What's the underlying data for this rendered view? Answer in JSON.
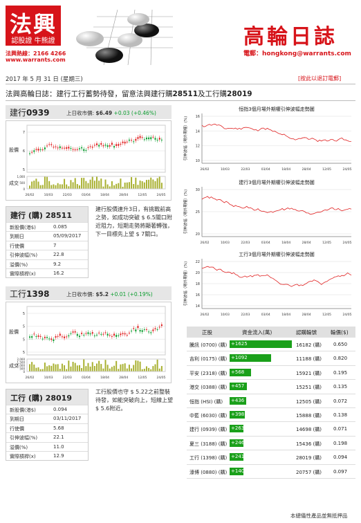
{
  "header": {
    "logo_main": "法興",
    "logo_sub": "認股證 牛熊證",
    "hotline": "法興熱線：2166 4266",
    "website": "www.warrants.com",
    "brand_title": "高輪日誌",
    "email": "電郵：hongkong@warrants.com",
    "date": "2017 年 5 月 31 日 (星期三)",
    "unsubscribe": "[按此以退訂電郵]"
  },
  "headline": {
    "prefix": "法興高輪日誌：建行工行蓄勢待發，留意法興建行購",
    "code1": "28511",
    "mid": "及工行購",
    "code2": "28019"
  },
  "stocks": [
    {
      "name": "建行",
      "code": "0939",
      "close_label": "上日收市價:",
      "close": "$6.49",
      "change": "+0.03 (+0.46%)",
      "y_label": "股價",
      "vol_label": "成交",
      "y_ticks": [
        "7",
        "6",
        "5"
      ],
      "vol_ticks": [
        "1,000",
        "500",
        "0"
      ],
      "x_ticks": [
        "26/02",
        "10/03",
        "22/03",
        "03/04",
        "18/04",
        "28/04",
        "12/05",
        "24/05"
      ],
      "warrant": {
        "title": "建行 (購) 28511",
        "rows": [
          {
            "k": "新股價(港$)",
            "v": "0.085"
          },
          {
            "k": "到期日",
            "v": "05/09/2017"
          },
          {
            "k": "行使價",
            "v": "7"
          },
          {
            "k": "引伸波幅(%)",
            "v": "22.8"
          },
          {
            "k": "溢價(%)",
            "v": "9.2"
          },
          {
            "k": "實際槓桿(x)",
            "v": "16.2"
          }
        ]
      },
      "comment": "建行股價連升3日，有挑戰前高之勢，如成功突破 $ 6.5關口附近阻力，短期走勢將顯著轉強，下一目標先上望 $ 7關口。"
    },
    {
      "name": "工行",
      "code": "1398",
      "close_label": "上日收市價:",
      "close": "$5.2",
      "change": "+0.01 (+0.19%)",
      "y_label": "股價",
      "vol_label": "成交",
      "y_ticks": [
        "5",
        "5",
        "5",
        "5"
      ],
      "vol_ticks": [
        "2,000",
        "1,500",
        "1,000",
        "500",
        "0"
      ],
      "x_ticks": [
        "26/02",
        "10/03",
        "22/03",
        "03/04",
        "18/04",
        "28/04",
        "12/05",
        "24/05"
      ],
      "warrant": {
        "title": "工行 (購) 28019",
        "rows": [
          {
            "k": "新股價(港$)",
            "v": "0.094"
          },
          {
            "k": "到期日",
            "v": "03/11/2017"
          },
          {
            "k": "行使價",
            "v": "5.68"
          },
          {
            "k": "引伸波幅(%)",
            "v": "22.1"
          },
          {
            "k": "溢價(%)",
            "v": "11.0"
          },
          {
            "k": "實際槓桿(x)",
            "v": "12.9"
          }
        ]
      },
      "comment": "工行股價也守 $ 5.22之前整裝待發，如能突破向上，短線上望 $ 5.6附近。"
    }
  ],
  "iv_charts": [
    {
      "title": "恒指3個月場外期權引伸波幅走勢圖",
      "y_label": "引伸波幅（場外期權）(%)",
      "y_ticks": [
        "16",
        "14",
        "12",
        "10"
      ]
    },
    {
      "title": "建行3個月場外期權引伸波幅走勢圖",
      "y_label": "引伸波幅（場外期權）(%)",
      "y_ticks": [
        "30",
        "25",
        "20"
      ]
    },
    {
      "title": "工行3個月場外期權引伸波幅走勢圖",
      "y_label": "引伸波幅（場外期權）(%)",
      "y_ticks": [
        "22",
        "20",
        "18",
        "16",
        "14"
      ]
    }
  ],
  "iv_x_ticks": [
    "26/02",
    "10/03",
    "22/03",
    "03/04",
    "18/04",
    "28/04",
    "12/05",
    "24/05"
  ],
  "flow_table": {
    "headers": [
      "正股",
      "資金流入(萬)",
      "認購輪號",
      "輪價($)"
    ],
    "rows": [
      {
        "stock": "騰訊 (0700) (購)",
        "flow": "+1625",
        "flow_value": 1625,
        "code": "16182 (購)",
        "price": "0.650"
      },
      {
        "stock": "吉利 (0175) (購)",
        "flow": "+1092",
        "flow_value": 1092,
        "code": "11188 (購)",
        "price": "0.820"
      },
      {
        "stock": "平安 (2318) (購)",
        "flow": "+568",
        "flow_value": 568,
        "code": "15921 (購)",
        "price": "0.195"
      },
      {
        "stock": "港交 (0388) (購)",
        "flow": "+457",
        "flow_value": 457,
        "code": "15251 (購)",
        "price": "0.135"
      },
      {
        "stock": "恒指 (HSI) (購)",
        "flow": "+436",
        "flow_value": 436,
        "code": "12505 (購)",
        "price": "0.072"
      },
      {
        "stock": "中藍 (6030) (購)",
        "flow": "+398",
        "flow_value": 398,
        "code": "15888 (購)",
        "price": "0.138"
      },
      {
        "stock": "建行 (0939) (購)",
        "flow": "+263",
        "flow_value": 263,
        "code": "14698 (購)",
        "price": "0.071"
      },
      {
        "stock": "夏三 (3188) (購)",
        "flow": "+246",
        "flow_value": 246,
        "code": "15436 (購)",
        "price": "0.198"
      },
      {
        "stock": "工行 (1398) (購)",
        "flow": "+241",
        "flow_value": 241,
        "code": "28019 (購)",
        "price": "0.094"
      },
      {
        "stock": "濠博 (0880) (購)",
        "flow": "+140",
        "flow_value": 140,
        "code": "20757 (購)",
        "price": "0.097"
      }
    ]
  },
  "footer": "本總儀性產品並無抵押品",
  "colors": {
    "brand_red": "#d7141a",
    "up_green": "#0a9c2e",
    "bar_green": "#1aa01a",
    "candle_red": "#e02020",
    "iv_line": "#e02020"
  }
}
